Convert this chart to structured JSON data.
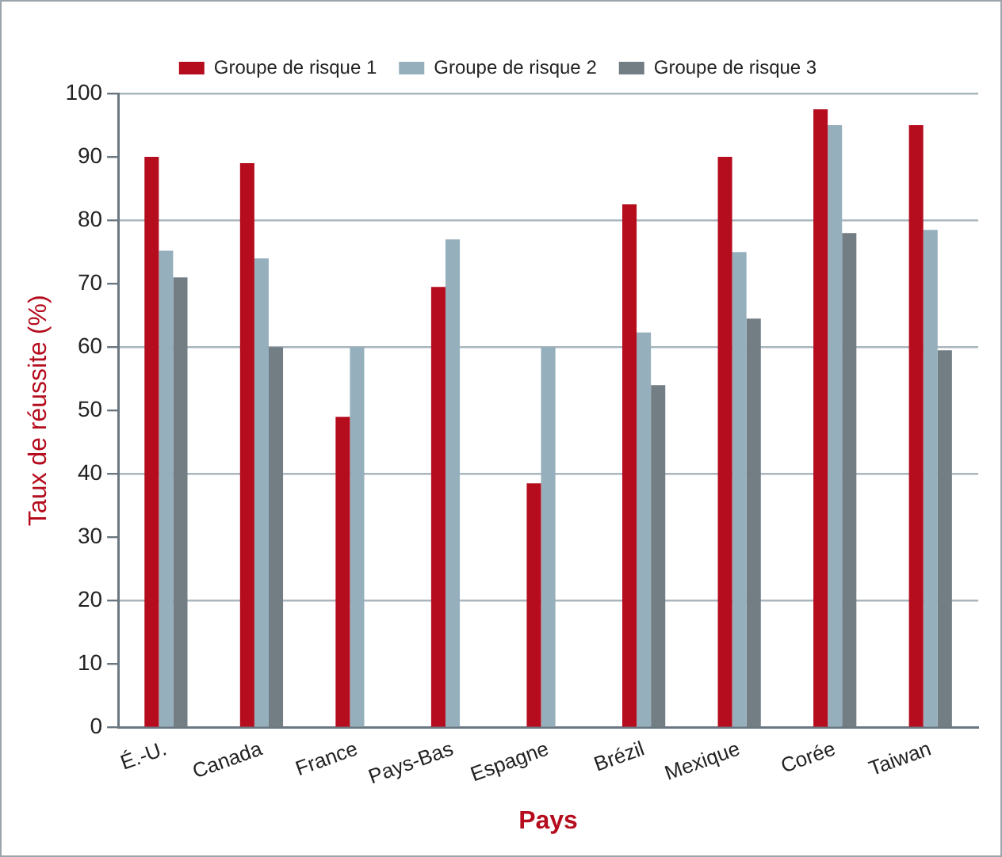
{
  "chart_data": {
    "type": "bar",
    "xlabel": "Pays",
    "ylabel": "Taux de réussite (%)",
    "categories": [
      "É.-U.",
      "Canada",
      "France",
      "Pays-Bas",
      "Espagne",
      "Brézil",
      "Mexique",
      "Corée",
      "Taiwan"
    ],
    "series": [
      {
        "name": "Groupe de risque 1",
        "color": "#b50d1e",
        "values": [
          90,
          89,
          49,
          69.5,
          38.5,
          82.5,
          90,
          97.5,
          95
        ]
      },
      {
        "name": "Groupe de risque 2",
        "color": "#96afbd",
        "values": [
          75.2,
          74,
          60,
          77,
          60,
          62.3,
          75,
          95,
          78.5
        ]
      },
      {
        "name": "Groupe de risque 3",
        "color": "#727d84",
        "values": [
          71,
          60,
          null,
          null,
          null,
          54,
          64.5,
          78,
          59.5
        ]
      }
    ],
    "ylim": [
      0,
      100
    ],
    "yticks": [
      0,
      10,
      20,
      30,
      40,
      50,
      60,
      70,
      80,
      90,
      100
    ],
    "grid": "y",
    "legend": "top"
  }
}
